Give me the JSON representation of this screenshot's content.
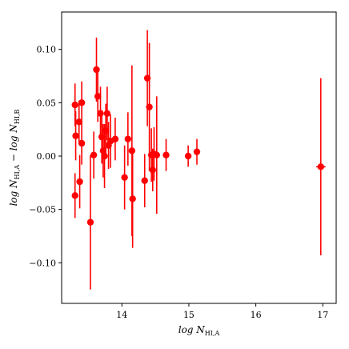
{
  "chart_data": {
    "type": "scatter",
    "title": "",
    "xlabel": "log N_HI,A",
    "ylabel": "log N_HI,A − log N_HI,B",
    "xlim": [
      13.1,
      17.2
    ],
    "ylim": [
      -0.138,
      0.135
    ],
    "xticks": [
      {
        "value": 14,
        "label": "14"
      },
      {
        "value": 15,
        "label": "15"
      },
      {
        "value": 16,
        "label": "16"
      },
      {
        "value": 17,
        "label": "17"
      }
    ],
    "yticks": [
      {
        "value": 0.1,
        "label": "0.10"
      },
      {
        "value": 0.05,
        "label": "0.05"
      },
      {
        "value": 0.0,
        "label": "0.00"
      },
      {
        "value": -0.05,
        "label": "−0.05"
      },
      {
        "value": -0.1,
        "label": "−0.10"
      }
    ],
    "grid": false,
    "legend": "none",
    "color": "#ff0000",
    "points": [
      {
        "x": 13.3,
        "y": 0.048,
        "yerr": 0.02,
        "xerr": 0
      },
      {
        "x": 13.31,
        "y": 0.019,
        "yerr": 0.023,
        "xerr": 0
      },
      {
        "x": 13.3,
        "y": -0.037,
        "yerr": 0.021,
        "xerr": 0
      },
      {
        "x": 13.36,
        "y": 0.032,
        "yerr": 0.02,
        "xerr": 0
      },
      {
        "x": 13.37,
        "y": -0.024,
        "yerr": 0.025,
        "xerr": 0
      },
      {
        "x": 13.4,
        "y": 0.05,
        "yerr": 0.02,
        "xerr": 0
      },
      {
        "x": 13.4,
        "y": 0.012,
        "yerr": 0.02,
        "xerr": 0
      },
      {
        "x": 13.53,
        "y": -0.062,
        "yerr": 0.063,
        "xerr": 0
      },
      {
        "x": 13.58,
        "y": 0.001,
        "yerr": 0.022,
        "xerr": 0
      },
      {
        "x": 13.62,
        "y": 0.081,
        "yerr": 0.03,
        "xerr": 0
      },
      {
        "x": 13.64,
        "y": 0.056,
        "yerr": 0.024,
        "xerr": 0
      },
      {
        "x": 13.68,
        "y": 0.04,
        "yerr": 0.025,
        "xerr": 0
      },
      {
        "x": 13.7,
        "y": 0.018,
        "yerr": 0.025,
        "xerr": 0
      },
      {
        "x": 13.72,
        "y": 0.005,
        "yerr": 0.025,
        "xerr": 0
      },
      {
        "x": 13.74,
        "y": 0.0,
        "yerr": 0.03,
        "xerr": 0
      },
      {
        "x": 13.76,
        "y": 0.024,
        "yerr": 0.025,
        "xerr": 0
      },
      {
        "x": 13.78,
        "y": 0.04,
        "yerr": 0.025,
        "xerr": 0
      },
      {
        "x": 13.8,
        "y": 0.01,
        "yerr": 0.022,
        "xerr": 0
      },
      {
        "x": 13.83,
        "y": 0.014,
        "yerr": 0.025,
        "xerr": 0
      },
      {
        "x": 13.9,
        "y": 0.016,
        "yerr": 0.02,
        "xerr": 0
      },
      {
        "x": 14.04,
        "y": -0.02,
        "yerr": 0.03,
        "xerr": 0
      },
      {
        "x": 14.09,
        "y": 0.016,
        "yerr": 0.025,
        "xerr": 0
      },
      {
        "x": 14.15,
        "y": 0.005,
        "yerr": 0.08,
        "xerr": 0
      },
      {
        "x": 14.16,
        "y": -0.04,
        "yerr": 0.046,
        "xerr": 0
      },
      {
        "x": 14.34,
        "y": -0.023,
        "yerr": 0.025,
        "xerr": 0
      },
      {
        "x": 14.38,
        "y": 0.073,
        "yerr": 0.045,
        "xerr": 0
      },
      {
        "x": 14.41,
        "y": 0.046,
        "yerr": 0.06,
        "xerr": 0
      },
      {
        "x": 14.44,
        "y": 0.001,
        "yerr": 0.025,
        "xerr": 0
      },
      {
        "x": 14.46,
        "y": -0.013,
        "yerr": 0.02,
        "xerr": 0
      },
      {
        "x": 14.48,
        "y": 0.002,
        "yerr": 0.025,
        "xerr": 0
      },
      {
        "x": 14.52,
        "y": 0.001,
        "yerr": 0.055,
        "xerr": 0
      },
      {
        "x": 14.66,
        "y": 0.001,
        "yerr": 0.015,
        "xerr": 0
      },
      {
        "x": 14.99,
        "y": 0.0,
        "yerr": 0.01,
        "xerr": 0
      },
      {
        "x": 15.12,
        "y": 0.004,
        "yerr": 0.012,
        "xerr": 0
      },
      {
        "x": 16.97,
        "y": -0.01,
        "yerr": 0.083,
        "xerr": 0.07
      }
    ]
  }
}
